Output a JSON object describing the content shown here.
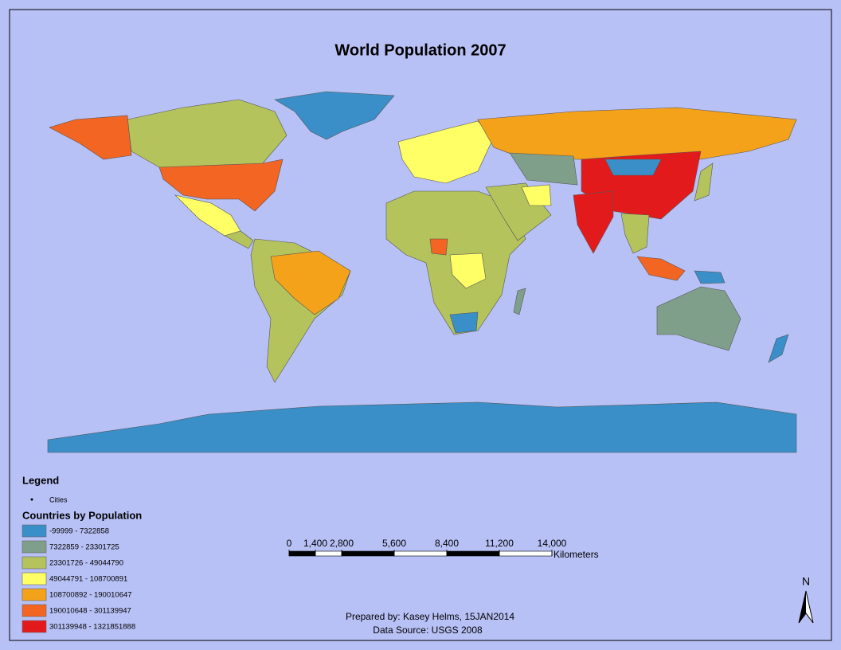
{
  "title": "World Population 2007",
  "legend": {
    "title": "Legend",
    "cities_label": "Cities",
    "classes_title": "Countries by Population",
    "classes": [
      {
        "label": "-99999 - 7322858",
        "color": "#3a8fc9"
      },
      {
        "label": "7322859 - 23301725",
        "color": "#7f9f8a"
      },
      {
        "label": "23301726 - 49044790",
        "color": "#b5c35c"
      },
      {
        "label": "49044791 - 108700891",
        "color": "#ffff66"
      },
      {
        "label": "108700892 - 190010647",
        "color": "#f5a21b"
      },
      {
        "label": "190010648 - 301139947",
        "color": "#f26522"
      },
      {
        "label": "301139948 - 1321851888",
        "color": "#e31a1c"
      }
    ]
  },
  "scale_bar": {
    "ticks": [
      0,
      {
        "value": 1400,
        "label": "1,400"
      },
      {
        "value": 2800,
        "label": "2,800"
      },
      {
        "value": 5600,
        "label": "5,600"
      },
      {
        "value": 8400,
        "label": "8,400"
      },
      {
        "value": 11200,
        "label": "11,200"
      },
      {
        "value": 14000,
        "label": "14,000"
      }
    ],
    "units": "Kilometers"
  },
  "north_arrow": "N",
  "credits": [
    "Prepared by: Kasey Helms, 15JAN2014",
    "Data Source: USGS 2008"
  ]
}
